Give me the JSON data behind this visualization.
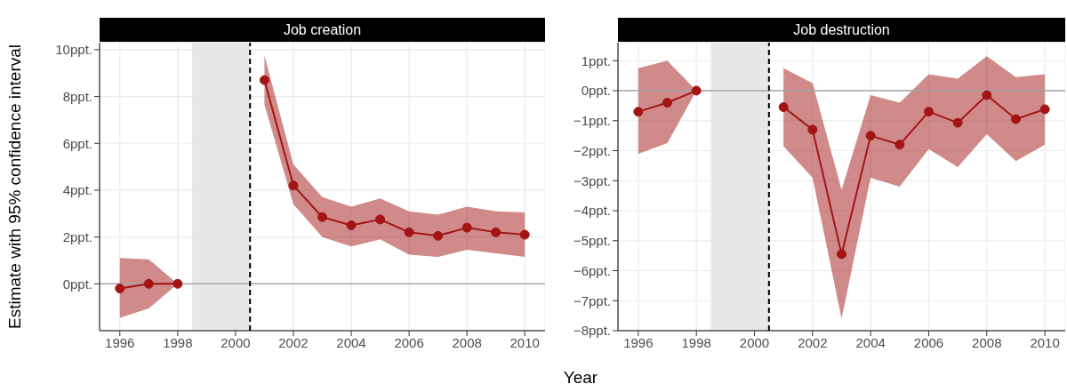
{
  "chart_data": [
    {
      "type": "line",
      "title": "Job creation",
      "xlabel": "Year",
      "ylabel": "Estimate with 95% confidence interval",
      "x": [
        1996,
        1997,
        1998,
        1999,
        2000,
        2001,
        2002,
        2003,
        2004,
        2005,
        2006,
        2007,
        2008,
        2009,
        2010
      ],
      "series": [
        {
          "color": "#a31515",
          "values": [
            -0.2,
            0.0,
            0.0,
            null,
            null,
            8.7,
            4.2,
            2.85,
            2.5,
            2.75,
            2.2,
            2.05,
            2.4,
            2.2,
            2.1
          ],
          "lower": [
            -1.45,
            -1.05,
            0.0,
            null,
            null,
            7.65,
            3.4,
            2.0,
            1.6,
            1.9,
            1.25,
            1.15,
            1.45,
            1.3,
            1.15
          ],
          "upper": [
            1.1,
            1.05,
            0.0,
            null,
            null,
            9.75,
            5.1,
            3.7,
            3.3,
            3.65,
            3.1,
            2.95,
            3.3,
            3.1,
            3.05
          ]
        }
      ],
      "xlim": [
        1995.3,
        2010.7
      ],
      "xticks": [
        1996,
        1998,
        2000,
        2002,
        2004,
        2006,
        2008,
        2010
      ],
      "ylim": [
        -2.0,
        10.3
      ],
      "yticks": [
        {
          "value": 0,
          "label": "0ppt."
        },
        {
          "value": 2,
          "label": "2ppt."
        },
        {
          "value": 4,
          "label": "4ppt."
        },
        {
          "value": 6,
          "label": "6ppt."
        },
        {
          "value": 8,
          "label": "8ppt."
        },
        {
          "value": 10,
          "label": "10ppt."
        }
      ],
      "bands": [
        {
          "axis": "x",
          "from": 1998.5,
          "to": 2000.5,
          "color": "#e3e3e3"
        }
      ],
      "ref_lines": [
        {
          "axis": "y",
          "value": 0,
          "color": "#a6a6a6",
          "line_style": "solid"
        },
        {
          "axis": "x",
          "value": 2000.5,
          "color": "#000000",
          "line_style": "dashed"
        }
      ],
      "grid": true,
      "marker": "circle",
      "line_style": "solid",
      "legend": false
    },
    {
      "type": "line",
      "title": "Job destruction",
      "x": [
        1996,
        1997,
        1998,
        1999,
        2000,
        2001,
        2002,
        2003,
        2004,
        2005,
        2006,
        2007,
        2008,
        2009,
        2010
      ],
      "series": [
        {
          "color": "#a31515",
          "values": [
            -0.7,
            -0.4,
            0.0,
            null,
            null,
            -0.55,
            -1.3,
            -5.45,
            -1.5,
            -1.8,
            -0.7,
            -1.07,
            -0.15,
            -0.95,
            -0.62
          ],
          "lower": [
            -2.1,
            -1.75,
            0.0,
            null,
            null,
            -1.85,
            -2.9,
            -7.6,
            -2.9,
            -3.2,
            -1.95,
            -2.55,
            -1.45,
            -2.35,
            -1.8
          ],
          "upper": [
            0.75,
            1.0,
            0.0,
            null,
            null,
            0.75,
            0.25,
            -3.3,
            -0.15,
            -0.4,
            0.55,
            0.4,
            1.15,
            0.45,
            0.55
          ]
        }
      ],
      "xlim": [
        1995.3,
        2010.7
      ],
      "xticks": [
        1996,
        1998,
        2000,
        2002,
        2004,
        2006,
        2008,
        2010
      ],
      "ylim": [
        -8.0,
        1.6
      ],
      "yticks": [
        {
          "value": -8,
          "label": "−8ppt."
        },
        {
          "value": -7,
          "label": "−7ppt."
        },
        {
          "value": -6,
          "label": "−6ppt."
        },
        {
          "value": -5,
          "label": "−5ppt."
        },
        {
          "value": -4,
          "label": "−4ppt."
        },
        {
          "value": -3,
          "label": "−3ppt."
        },
        {
          "value": -2,
          "label": "−2ppt."
        },
        {
          "value": -1,
          "label": "−1ppt."
        },
        {
          "value": 0,
          "label": "0ppt."
        },
        {
          "value": 1,
          "label": "1ppt."
        }
      ],
      "bands": [
        {
          "axis": "x",
          "from": 1998.5,
          "to": 2000.5,
          "color": "#e3e3e3"
        }
      ],
      "ref_lines": [
        {
          "axis": "y",
          "value": 0,
          "color": "#a6a6a6",
          "line_style": "solid"
        },
        {
          "axis": "x",
          "value": 2000.5,
          "color": "#000000",
          "line_style": "dashed"
        }
      ],
      "grid": true,
      "marker": "circle",
      "line_style": "solid",
      "legend": false
    }
  ]
}
